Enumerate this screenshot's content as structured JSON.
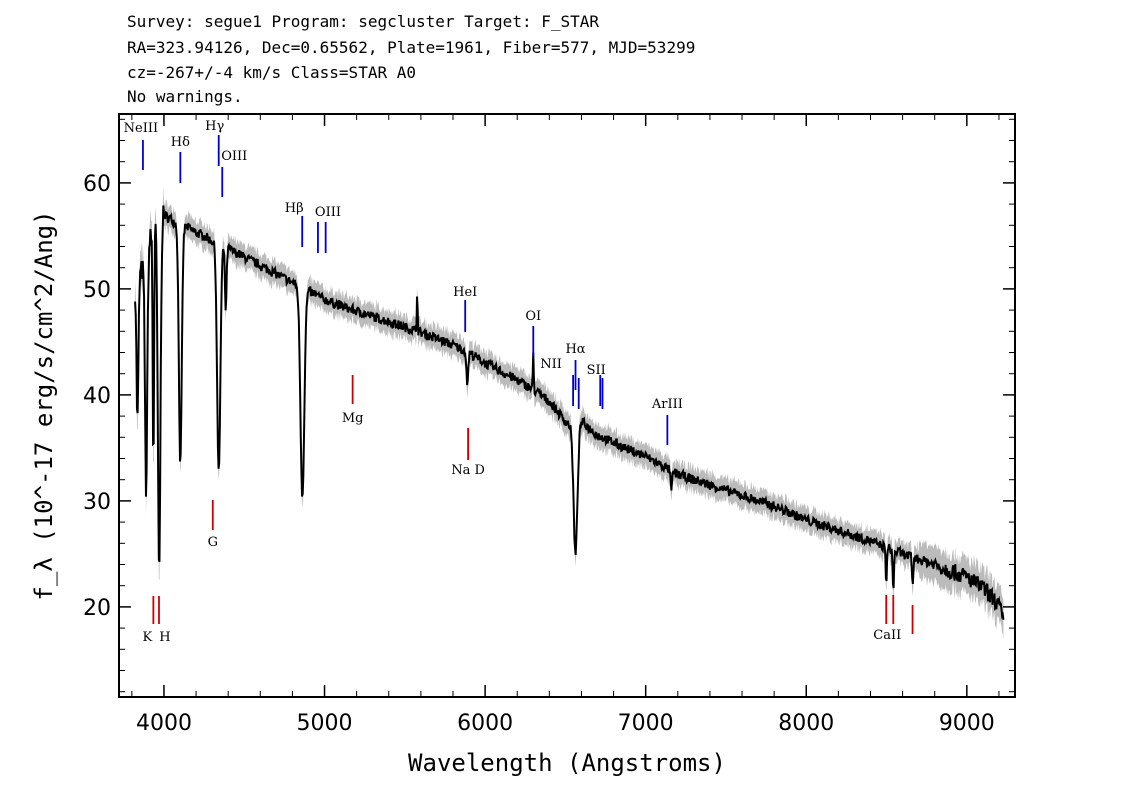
{
  "header": {
    "line1": "Survey: segue1 Program: segcluster Target: F_STAR",
    "line2": "RA=323.94126, Dec=0.65562, Plate=1961, Fiber=577, MJD=53299",
    "line3": "cz=-267+/-4 km/s Class=STAR A0",
    "line4": "No warnings."
  },
  "chart_data": {
    "type": "line",
    "xlabel": "Wavelength (Angstroms)",
    "ylabel": "f_λ (10^-17 erg/s/cm^2/Ang)",
    "xlim": [
      3720,
      9300
    ],
    "ylim": [
      11.5,
      66.5
    ],
    "xticks": [
      4000,
      5000,
      6000,
      7000,
      8000,
      9000
    ],
    "yticks": [
      20,
      30,
      40,
      50,
      60
    ],
    "xtick_labels": [
      "4000",
      "5000",
      "6000",
      "7000",
      "8000",
      "9000"
    ],
    "ytick_labels": [
      "20",
      "30",
      "40",
      "50",
      "60"
    ],
    "grid": false,
    "series": [
      {
        "color": "#000000",
        "error_band_color": "#bbbbbb",
        "continuum": [
          [
            3820,
            50.5
          ],
          [
            3870,
            52
          ],
          [
            3920,
            55
          ],
          [
            3960,
            56.5
          ],
          [
            4000,
            57
          ],
          [
            4050,
            56.5
          ],
          [
            4100,
            56
          ],
          [
            4150,
            55.8
          ],
          [
            4200,
            55.3
          ],
          [
            4250,
            55
          ],
          [
            4300,
            54.5
          ],
          [
            4400,
            53.8
          ],
          [
            4500,
            53
          ],
          [
            4600,
            52.2
          ],
          [
            4700,
            51.4
          ],
          [
            4800,
            50.6
          ],
          [
            4900,
            49.8
          ],
          [
            5000,
            49.0
          ],
          [
            5100,
            48.4
          ],
          [
            5200,
            47.9
          ],
          [
            5300,
            47.4
          ],
          [
            5400,
            46.9
          ],
          [
            5500,
            46.4
          ],
          [
            5600,
            45.9
          ],
          [
            5700,
            45.3
          ],
          [
            5800,
            44.7
          ],
          [
            5900,
            44.0
          ],
          [
            6000,
            43.0
          ],
          [
            6100,
            42.2
          ],
          [
            6200,
            41.4
          ],
          [
            6300,
            40.5
          ],
          [
            6400,
            39.4
          ],
          [
            6500,
            37.5
          ],
          [
            6560,
            36.8
          ],
          [
            6600,
            37.5
          ],
          [
            6700,
            36.2
          ],
          [
            6800,
            35.5
          ],
          [
            6900,
            34.8
          ],
          [
            7000,
            34.2
          ],
          [
            7200,
            32.5
          ],
          [
            7400,
            31.5
          ],
          [
            7600,
            30.5
          ],
          [
            7800,
            29.5
          ],
          [
            8000,
            28.2
          ],
          [
            8200,
            27.2
          ],
          [
            8400,
            26.2
          ],
          [
            8600,
            25.0
          ],
          [
            8800,
            24.0
          ],
          [
            9000,
            22.8
          ],
          [
            9100,
            21.8
          ],
          [
            9200,
            20.2
          ],
          [
            9230,
            18.5
          ]
        ],
        "absorption_lines": [
          [
            3835,
            37.5,
            6
          ],
          [
            3889,
            31,
            7
          ],
          [
            3934,
            33,
            4
          ],
          [
            3970,
            23,
            8
          ],
          [
            4102,
            33.5,
            9
          ],
          [
            4341,
            32.5,
            10
          ],
          [
            4862,
            30.5,
            12
          ],
          [
            4385,
            48,
            5
          ],
          [
            5890,
            40,
            5
          ],
          [
            6563,
            25,
            12
          ],
          [
            7160,
            31,
            5
          ],
          [
            8498,
            22.5,
            4
          ],
          [
            8542,
            21.5,
            4
          ],
          [
            8662,
            22,
            4
          ]
        ],
        "emission_spikes": [
          [
            5577,
            50
          ],
          [
            6300,
            44
          ],
          [
            5893,
            45.5
          ]
        ]
      }
    ],
    "annotations": [
      {
        "label": "NeIII",
        "x": 3869,
        "color": "#0000cc",
        "position": "above"
      },
      {
        "label": "Hδ",
        "x": 4102,
        "color": "#0000cc",
        "position": "above"
      },
      {
        "label": "Hγ",
        "x": 4341,
        "color": "#0000cc",
        "position": "above"
      },
      {
        "label": "OIII",
        "x": 4363,
        "color": "#0000cc",
        "position": "above"
      },
      {
        "label": "Hβ",
        "x": 4861,
        "color": "#0000cc",
        "position": "above"
      },
      {
        "label": "OIII",
        "x": 4959,
        "color": "#0000cc",
        "position": "above"
      },
      {
        "label": "",
        "x": 5007,
        "color": "#0000cc",
        "position": "above"
      },
      {
        "label": "HeI",
        "x": 5876,
        "color": "#0000cc",
        "position": "above"
      },
      {
        "label": "OI",
        "x": 6300,
        "color": "#0000cc",
        "position": "above"
      },
      {
        "label": "NII",
        "x": 6548,
        "color": "#0000cc",
        "position": "above"
      },
      {
        "label": "Hα",
        "x": 6563,
        "color": "#0000cc",
        "position": "above"
      },
      {
        "label": "",
        "x": 6583,
        "color": "#0000cc",
        "position": "above"
      },
      {
        "label": "SII",
        "x": 6717,
        "color": "#0000cc",
        "position": "above"
      },
      {
        "label": "",
        "x": 6731,
        "color": "#0000cc",
        "position": "above"
      },
      {
        "label": "ArIII",
        "x": 7135,
        "color": "#0000cc",
        "position": "above"
      },
      {
        "label": "K",
        "x": 3934,
        "color": "#cc0000",
        "position": "below"
      },
      {
        "label": "H",
        "x": 3969,
        "color": "#cc0000",
        "position": "below"
      },
      {
        "label": "G",
        "x": 4304,
        "color": "#cc0000",
        "position": "below"
      },
      {
        "label": "Mg",
        "x": 5175,
        "color": "#cc0000",
        "position": "below"
      },
      {
        "label": "Na D",
        "x": 5894,
        "color": "#cc0000",
        "position": "below"
      },
      {
        "label": "",
        "x": 8498,
        "color": "#cc0000",
        "position": "below"
      },
      {
        "label": "CaII",
        "x": 8542,
        "color": "#cc0000",
        "position": "below"
      },
      {
        "label": "",
        "x": 8662,
        "color": "#cc0000",
        "position": "below"
      }
    ]
  }
}
